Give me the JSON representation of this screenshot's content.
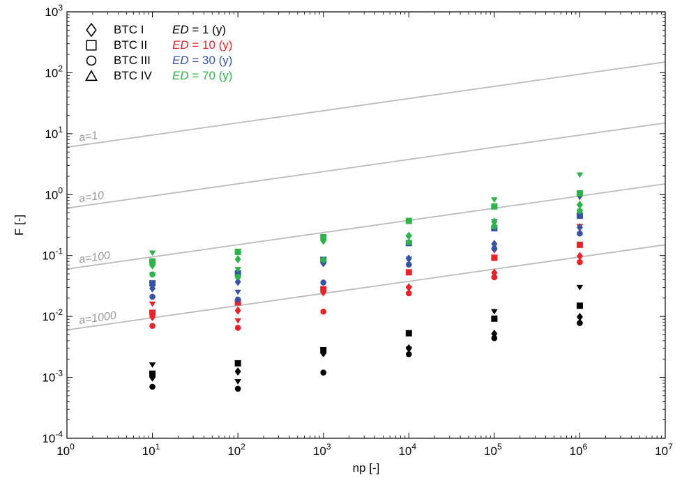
{
  "chart_data": {
    "type": "scatter",
    "x_scale": "log",
    "y_scale": "log",
    "xlabel": "np [-]",
    "ylabel": "F [-]",
    "xlim": [
      1,
      10000000
    ],
    "ylim": [
      0.0001,
      1000
    ],
    "x_ticks": [
      {
        "base": "10",
        "exp": "0",
        "value": 1
      },
      {
        "base": "10",
        "exp": "1",
        "value": 10
      },
      {
        "base": "10",
        "exp": "2",
        "value": 100
      },
      {
        "base": "10",
        "exp": "3",
        "value": 1000
      },
      {
        "base": "10",
        "exp": "4",
        "value": 10000
      },
      {
        "base": "10",
        "exp": "5",
        "value": 100000
      },
      {
        "base": "10",
        "exp": "6",
        "value": 1000000
      },
      {
        "base": "10",
        "exp": "7",
        "value": 10000000
      }
    ],
    "y_ticks": [
      {
        "base": "10",
        "exp": "-4",
        "value": 0.0001
      },
      {
        "base": "10",
        "exp": "-3",
        "value": 0.001
      },
      {
        "base": "10",
        "exp": "-2",
        "value": 0.01
      },
      {
        "base": "10",
        "exp": "-1",
        "value": 0.1
      },
      {
        "base": "10",
        "exp": "0",
        "value": 1
      },
      {
        "base": "10",
        "exp": "1",
        "value": 10
      },
      {
        "base": "10",
        "exp": "2",
        "value": 100
      },
      {
        "base": "10",
        "exp": "3",
        "value": 1000
      }
    ],
    "legend_placement": "top-left",
    "legend": {
      "markers": [
        {
          "label": "BTC I",
          "symbol": "diamond"
        },
        {
          "label": "BTC II",
          "symbol": "square"
        },
        {
          "label": "BTC III",
          "symbol": "circle"
        },
        {
          "label": "BTC IV",
          "symbol": "triangle"
        }
      ],
      "colors": [
        {
          "label": "1 (y)",
          "prefix": "ED",
          "eq": " = ",
          "color": "#000000"
        },
        {
          "label": "10 (y)",
          "prefix": "ED",
          "eq": " = ",
          "color": "#e8242a"
        },
        {
          "label": "30 (y)",
          "prefix": "ED",
          "eq": " = ",
          "color": "#3953a4"
        },
        {
          "label": "70 (y)",
          "prefix": "ED",
          "eq": " = ",
          "color": "#2cb34a"
        }
      ]
    },
    "reference_lines": [
      {
        "label": "a=1",
        "a": 1,
        "y_at_x1": 6.0,
        "y_at_x1e7": 150,
        "color": "#bbbbbb"
      },
      {
        "label": "a=10",
        "a": 10,
        "y_at_x1": 0.6,
        "y_at_x1e7": 15,
        "color": "#bbbbbb"
      },
      {
        "label": "a=100",
        "a": 100,
        "y_at_x1": 0.06,
        "y_at_x1e7": 1.5,
        "color": "#bbbbbb"
      },
      {
        "label": "a=1000",
        "a": 1000,
        "y_at_x1": 0.006,
        "y_at_x1e7": 0.15,
        "color": "#bbbbbb"
      }
    ],
    "series": [
      {
        "btc": "BTC I",
        "ed": "1 (y)",
        "symbol": "diamond",
        "color": "#000000",
        "x": [
          10,
          100,
          1000,
          10000,
          100000,
          1000000
        ],
        "y": [
          0.001,
          0.00125,
          0.0025,
          0.003,
          0.0052,
          0.0098
        ]
      },
      {
        "btc": "BTC II",
        "ed": "1 (y)",
        "symbol": "square",
        "color": "#000000",
        "x": [
          10,
          100,
          1000,
          10000,
          100000,
          1000000
        ],
        "y": [
          0.00115,
          0.0017,
          0.0028,
          0.0053,
          0.0092,
          0.015
        ]
      },
      {
        "btc": "BTC III",
        "ed": "1 (y)",
        "symbol": "circle",
        "color": "#000000",
        "x": [
          10,
          100,
          1000,
          10000,
          100000,
          1000000
        ],
        "y": [
          0.0007,
          0.00065,
          0.0012,
          0.0024,
          0.0044,
          0.0078
        ]
      },
      {
        "btc": "BTC IV",
        "ed": "1 (y)",
        "symbol": "triangle",
        "color": "#000000",
        "x": [
          10,
          100,
          1000,
          10000,
          100000,
          1000000
        ],
        "y": [
          0.0016,
          0.00085,
          0.0028,
          0.0029,
          0.012,
          0.03
        ]
      },
      {
        "btc": "BTC I",
        "ed": "10 (y)",
        "symbol": "diamond",
        "color": "#e8242a",
        "x": [
          10,
          100,
          1000,
          10000,
          100000,
          1000000
        ],
        "y": [
          0.0098,
          0.0125,
          0.025,
          0.03,
          0.052,
          0.098
        ]
      },
      {
        "btc": "BTC II",
        "ed": "10 (y)",
        "symbol": "square",
        "color": "#e8242a",
        "x": [
          10,
          100,
          1000,
          10000,
          100000,
          1000000
        ],
        "y": [
          0.0115,
          0.017,
          0.028,
          0.053,
          0.092,
          0.15
        ]
      },
      {
        "btc": "BTC III",
        "ed": "10 (y)",
        "symbol": "circle",
        "color": "#e8242a",
        "x": [
          10,
          100,
          1000,
          10000,
          100000,
          1000000
        ],
        "y": [
          0.007,
          0.0065,
          0.012,
          0.024,
          0.044,
          0.078
        ]
      },
      {
        "btc": "BTC IV",
        "ed": "10 (y)",
        "symbol": "triangle",
        "color": "#e8242a",
        "x": [
          10,
          100,
          1000,
          10000,
          100000,
          1000000
        ],
        "y": [
          0.016,
          0.0085,
          0.028,
          0.029,
          0.12,
          0.3
        ]
      },
      {
        "btc": "BTC I",
        "ed": "30 (y)",
        "symbol": "diamond",
        "color": "#3953a4",
        "x": [
          10,
          100,
          1000,
          10000,
          100000,
          1000000
        ],
        "y": [
          0.029,
          0.037,
          0.075,
          0.089,
          0.155,
          0.29
        ]
      },
      {
        "btc": "BTC II",
        "ed": "30 (y)",
        "symbol": "square",
        "color": "#3953a4",
        "x": [
          10,
          100,
          1000,
          10000,
          100000,
          1000000
        ],
        "y": [
          0.035,
          0.051,
          0.085,
          0.16,
          0.28,
          0.45
        ]
      },
      {
        "btc": "BTC III",
        "ed": "30 (y)",
        "symbol": "circle",
        "color": "#3953a4",
        "x": [
          10,
          100,
          1000,
          10000,
          100000,
          1000000
        ],
        "y": [
          0.021,
          0.019,
          0.036,
          0.071,
          0.13,
          0.23
        ]
      },
      {
        "btc": "BTC IV",
        "ed": "30 (y)",
        "symbol": "triangle",
        "color": "#3953a4",
        "x": [
          10,
          100,
          1000,
          10000,
          100000,
          1000000
        ],
        "y": [
          0.048,
          0.025,
          0.085,
          0.087,
          0.36,
          0.9
        ]
      },
      {
        "btc": "BTC I",
        "ed": "70 (y)",
        "symbol": "diamond",
        "color": "#2cb34a",
        "x": [
          10,
          100,
          1000,
          10000,
          100000,
          1000000
        ],
        "y": [
          0.069,
          0.087,
          0.175,
          0.21,
          0.36,
          0.68
        ]
      },
      {
        "btc": "BTC II",
        "ed": "70 (y)",
        "symbol": "square",
        "color": "#2cb34a",
        "x": [
          10,
          100,
          1000,
          10000,
          100000,
          1000000
        ],
        "y": [
          0.08,
          0.115,
          0.2,
          0.37,
          0.64,
          1.05
        ]
      },
      {
        "btc": "BTC III",
        "ed": "70 (y)",
        "symbol": "circle",
        "color": "#2cb34a",
        "x": [
          10,
          100,
          1000,
          10000,
          100000,
          1000000
        ],
        "y": [
          0.049,
          0.045,
          0.085,
          0.165,
          0.3,
          0.54
        ]
      },
      {
        "btc": "BTC IV",
        "ed": "70 (y)",
        "symbol": "triangle",
        "color": "#2cb34a",
        "x": [
          10,
          100,
          1000,
          10000,
          100000,
          1000000
        ],
        "y": [
          0.11,
          0.059,
          0.2,
          0.2,
          0.82,
          2.1
        ]
      }
    ]
  }
}
